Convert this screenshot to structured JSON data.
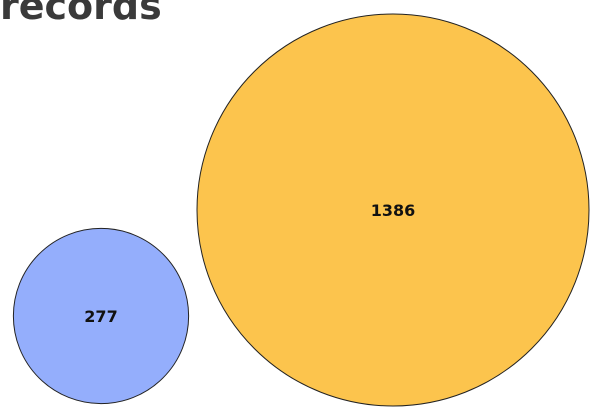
{
  "chart_data": {
    "type": "bubble",
    "title": "records",
    "bubbles": [
      {
        "label": "277",
        "value": 277,
        "color": "#94aefc"
      },
      {
        "label": "1386",
        "value": 1386,
        "color": "#fcc44d"
      }
    ]
  }
}
